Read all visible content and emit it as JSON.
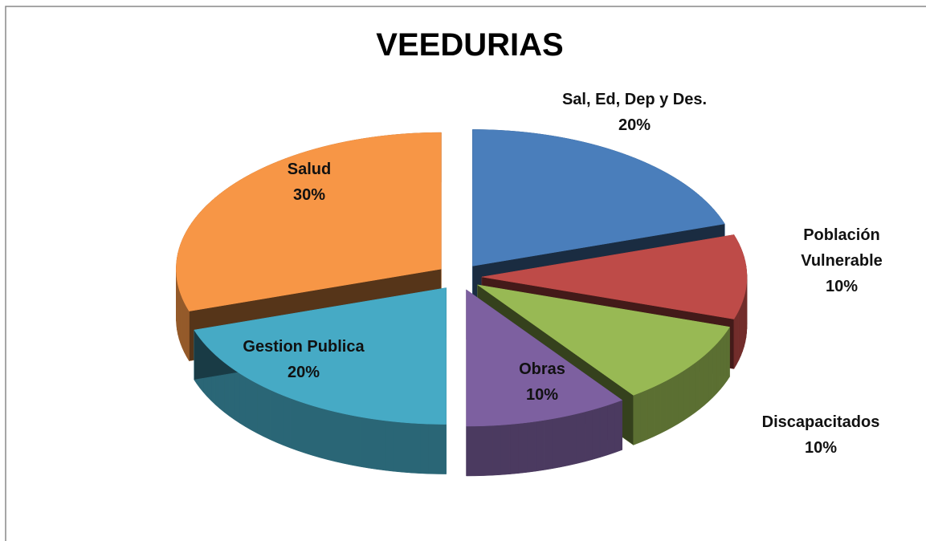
{
  "chart_data": {
    "type": "pie",
    "title": "VEEDURIAS",
    "categories": [
      "Sal, Ed, Dep y Des.",
      "Población Vulnerable",
      "Discapacitados",
      "Obras",
      "Gestion Publica",
      "Salud"
    ],
    "values": [
      20,
      10,
      10,
      10,
      20,
      30
    ],
    "value_labels": [
      "20%",
      "10%",
      "10%",
      "10%",
      "20%",
      "30%"
    ],
    "colors": [
      "#4a7ebb",
      "#be4b48",
      "#98b954",
      "#7d60a0",
      "#46aac5",
      "#f79646"
    ]
  }
}
